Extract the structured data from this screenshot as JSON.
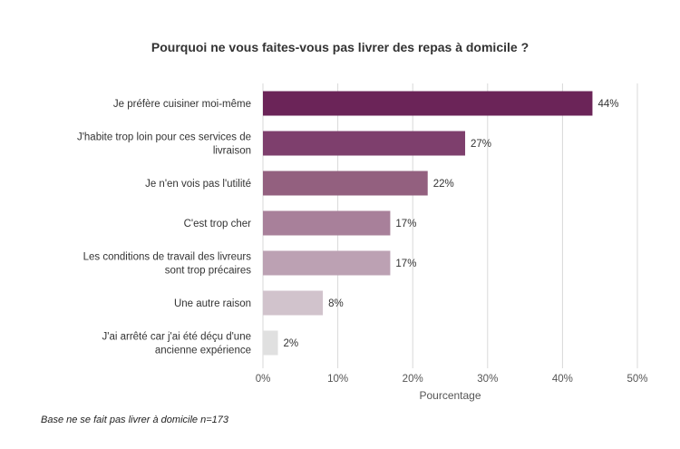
{
  "chart_data": {
    "type": "bar",
    "orientation": "horizontal",
    "title": "Pourquoi ne vous faites-vous pas livrer des repas à domicile ?",
    "categories": [
      [
        "Je préfère cuisiner moi-même"
      ],
      [
        "J'habite trop loin pour ces services de",
        "livraison"
      ],
      [
        "Je n'en vois pas l'utilité"
      ],
      [
        "C'est trop cher"
      ],
      [
        "Les conditions de travail des livreurs",
        "sont trop précaires"
      ],
      [
        "Une autre raison"
      ],
      [
        "J'ai arrêté car j'ai été déçu d'une",
        "ancienne expérience"
      ]
    ],
    "values": [
      44,
      27,
      22,
      17,
      17,
      8,
      2
    ],
    "value_labels": [
      "44%",
      "27%",
      "22%",
      "17%",
      "17%",
      "8%",
      "2%"
    ],
    "colors": [
      "#6b2458",
      "#7e3f6d",
      "#93607f",
      "#a8809a",
      "#bca1b3",
      "#d1c3cc",
      "#e0e0e0"
    ],
    "xlabel": "Pourcentage",
    "xlim": [
      0,
      50
    ],
    "xticks": [
      0,
      10,
      20,
      30,
      40,
      50
    ],
    "xtick_labels": [
      "0%",
      "10%",
      "20%",
      "30%",
      "40%",
      "50%"
    ],
    "grid": "vertical",
    "legend": "none"
  },
  "footnote": "Base ne se fait pas livrer à domicile n=173"
}
